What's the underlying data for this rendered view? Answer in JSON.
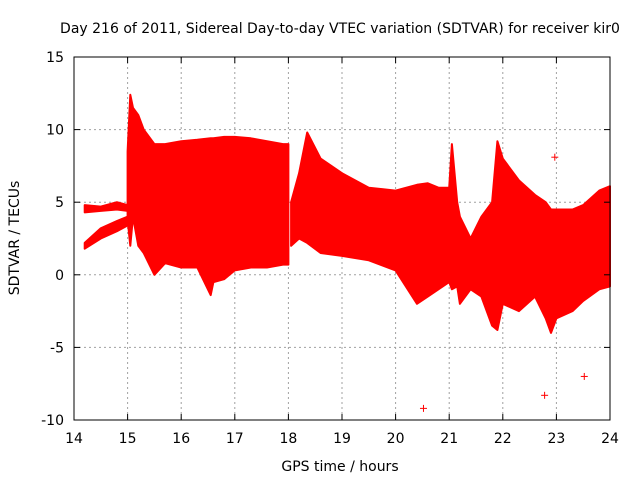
{
  "chart_data": {
    "type": "scatter",
    "title": "Day 216 of 2011, Sidereal Day-to-day VTEC variation (SDTVAR) for receiver kir0",
    "xlabel": "GPS time / hours",
    "ylabel": "SDTVAR / TECUs",
    "xlim": [
      14,
      24
    ],
    "ylim": [
      -10,
      15
    ],
    "x_ticks": [
      14,
      15,
      16,
      17,
      18,
      19,
      20,
      21,
      22,
      23,
      24
    ],
    "y_ticks": [
      -10,
      -5,
      0,
      5,
      10,
      15
    ],
    "x_tick_labels": [
      "14",
      "15",
      "16",
      "17",
      "18",
      "19",
      "20",
      "21",
      "22",
      "23",
      "24"
    ],
    "y_tick_labels": [
      "-10",
      "-5",
      "0",
      "5",
      "10",
      "15"
    ],
    "grid": true,
    "marker": "+",
    "color": "#ff0000",
    "bands": [
      {
        "x": [
          14.2,
          14.5,
          14.8,
          15.0
        ],
        "low": [
          4.3,
          4.4,
          4.5,
          4.4
        ],
        "high": [
          4.8,
          4.7,
          5.0,
          4.8
        ]
      },
      {
        "x": [
          14.2,
          14.5,
          14.8,
          15.0
        ],
        "low": [
          1.8,
          2.5,
          3.0,
          3.4
        ],
        "high": [
          2.2,
          3.2,
          3.7,
          4.0
        ]
      },
      {
        "x": [
          15.0,
          15.05,
          15.1,
          15.2,
          15.3,
          15.5,
          15.7,
          16.0,
          16.3,
          16.55,
          16.6,
          16.8,
          17.0,
          17.3,
          17.6,
          17.9,
          18.0
        ],
        "low": [
          3.8,
          2.0,
          4.0,
          2.0,
          1.5,
          0.0,
          0.8,
          0.5,
          0.5,
          -1.4,
          -0.5,
          -0.3,
          0.3,
          0.5,
          0.5,
          0.7,
          0.7
        ],
        "high": [
          8.5,
          12.4,
          11.5,
          11.0,
          10.0,
          9.0,
          9.0,
          9.2,
          9.3,
          9.4,
          9.4,
          9.5,
          9.5,
          9.4,
          9.2,
          9.0,
          9.0
        ]
      },
      {
        "x": [
          18.05,
          18.2,
          18.35,
          18.6,
          19.0,
          19.5,
          20.0,
          20.4,
          20.6,
          20.8,
          21.0
        ],
        "low": [
          2.0,
          2.5,
          2.2,
          1.5,
          1.3,
          1.0,
          0.3,
          -2.0,
          -1.5,
          -1.0,
          -0.5
        ],
        "high": [
          5.0,
          7.0,
          9.8,
          8.0,
          7.0,
          6.0,
          5.8,
          6.2,
          6.3,
          6.0,
          6.0
        ]
      },
      {
        "x": [
          21.0,
          21.05,
          21.15,
          21.2,
          21.4,
          21.6,
          21.8,
          21.9,
          22.0,
          22.3,
          22.6,
          22.8,
          22.9,
          23.0,
          23.3,
          23.5,
          23.8,
          24.0
        ],
        "low": [
          -0.5,
          -1.0,
          -0.8,
          -2.0,
          -1.0,
          -1.5,
          -3.5,
          -3.8,
          -2.0,
          -2.5,
          -1.5,
          -3.0,
          -4.0,
          -3.0,
          -2.5,
          -1.8,
          -1.0,
          -0.8
        ],
        "high": [
          6.0,
          9.0,
          5.0,
          4.0,
          2.5,
          4.0,
          5.0,
          9.2,
          8.0,
          6.5,
          5.5,
          5.0,
          4.5,
          4.5,
          4.5,
          4.8,
          5.8,
          6.1
        ]
      }
    ],
    "outliers": [
      {
        "x": 20.52,
        "y": -9.2
      },
      {
        "x": 22.78,
        "y": -8.3
      },
      {
        "x": 22.97,
        "y": 8.1
      },
      {
        "x": 23.52,
        "y": -7.0
      }
    ]
  }
}
